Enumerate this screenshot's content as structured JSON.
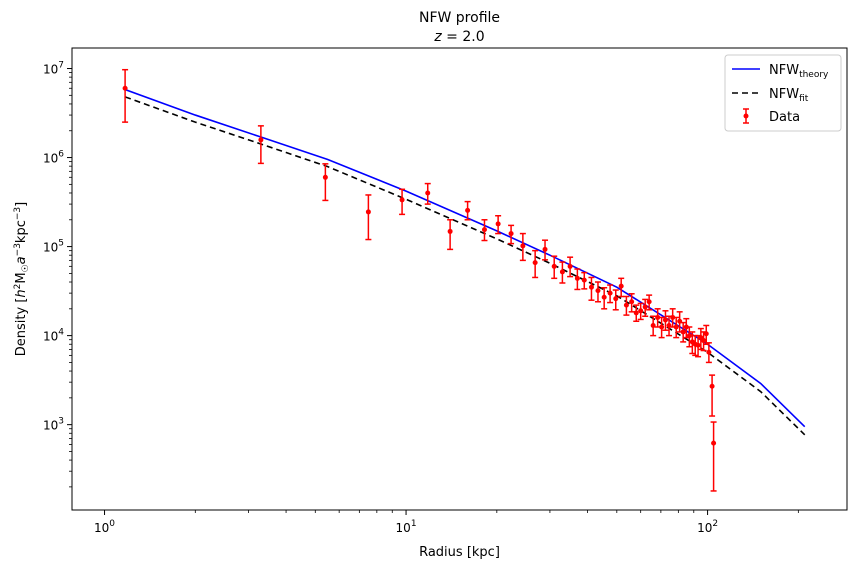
{
  "chart_data": {
    "type": "scatter",
    "title": "NFW profile",
    "subtitle": "z = 2.0",
    "xlabel": "Radius [kpc]",
    "ylabel": "Density [h² M☉ a⁻³ kpc⁻³]",
    "xscale": "log",
    "yscale": "log",
    "xlim": [
      0.78,
      290
    ],
    "ylim": [
      110,
      17000000
    ],
    "grid": false,
    "legend_position": "top-right",
    "x_ticks": [
      {
        "value": 1,
        "base": "10",
        "exp": "0"
      },
      {
        "value": 10,
        "base": "10",
        "exp": "1"
      },
      {
        "value": 100,
        "base": "10",
        "exp": "2"
      }
    ],
    "y_ticks": [
      {
        "value": 1000,
        "base": "10",
        "exp": "3"
      },
      {
        "value": 10000,
        "base": "10",
        "exp": "4"
      },
      {
        "value": 100000,
        "base": "10",
        "exp": "5"
      },
      {
        "value": 1000000,
        "base": "10",
        "exp": "6"
      },
      {
        "value": 10000000,
        "base": "10",
        "exp": "7"
      }
    ],
    "series": [
      {
        "name": "NFW_theory",
        "legend_main": "NFW",
        "legend_sub": "theory",
        "kind": "line",
        "color": "#0000ff",
        "dash": "",
        "x": [
          1.17,
          2,
          3.3,
          5.5,
          10,
          20,
          30,
          50,
          100,
          150,
          210
        ],
        "y": [
          5800000,
          3000000,
          1700000,
          950000,
          420000,
          150000,
          80000,
          35000,
          8000,
          2900,
          950
        ]
      },
      {
        "name": "NFW_fit",
        "legend_main": "NFW",
        "legend_sub": "fit",
        "kind": "line",
        "color": "#000000",
        "dash": "6,4",
        "x": [
          1.17,
          2,
          3.3,
          5.5,
          10,
          20,
          30,
          50,
          100,
          150,
          210
        ],
        "y": [
          4800000,
          2500000,
          1420000,
          790000,
          340000,
          122000,
          65000,
          28000,
          6500,
          2350,
          770
        ]
      },
      {
        "name": "Data",
        "kind": "errorbar",
        "color": "#ff0000",
        "x": [
          1.17,
          3.3,
          5.4,
          7.5,
          9.7,
          11.8,
          14,
          16,
          18.2,
          20.2,
          22.3,
          24.4,
          26.8,
          28.9,
          31,
          33,
          35,
          37,
          39,
          41.2,
          43.3,
          45.4,
          47.5,
          49.6,
          51.7,
          53.8,
          56,
          58,
          60,
          62.1,
          64,
          66,
          68.3,
          70.4,
          72.5,
          74.5,
          76.6,
          78.7,
          80.8,
          83,
          85,
          87,
          89,
          91,
          93,
          95,
          97,
          99,
          101,
          103.5,
          104.7
        ],
        "y": [
          6000000,
          1580000,
          600000,
          245000,
          335000,
          400000,
          148000,
          255000,
          155000,
          180000,
          140000,
          102000,
          66000,
          93000,
          60000,
          52000,
          60000,
          44000,
          42000,
          35000,
          32000,
          27000,
          30000,
          26000,
          36000,
          22000,
          24000,
          18000,
          19000,
          21000,
          24000,
          13000,
          16000,
          12500,
          15000,
          13000,
          16000,
          12500,
          14500,
          11000,
          12500,
          10000,
          8500,
          8000,
          7800,
          9500,
          8800,
          10500,
          6500,
          2700,
          620
        ],
        "yerr_low": [
          3500000,
          720000,
          270000,
          125000,
          105000,
          100000,
          55000,
          55000,
          38000,
          40000,
          32000,
          32000,
          21000,
          22000,
          16000,
          13000,
          14000,
          11000,
          8500,
          10000,
          8000,
          7000,
          6500,
          6500,
          8500,
          5000,
          5500,
          3500,
          3800,
          4500,
          4500,
          3000,
          3500,
          3000,
          3500,
          3000,
          3500,
          3000,
          3500,
          2500,
          3000,
          2500,
          2200,
          2000,
          2000,
          2500,
          2000,
          2500,
          1500,
          1450,
          440
        ],
        "yerr_high": [
          3700000,
          690000,
          250000,
          135000,
          105000,
          110000,
          52000,
          65000,
          45000,
          42000,
          33000,
          38000,
          24000,
          25000,
          18000,
          15000,
          16000,
          12000,
          9000,
          10000,
          8000,
          7500,
          7000,
          6500,
          8000,
          5500,
          5500,
          4000,
          4000,
          4500,
          4500,
          3500,
          4000,
          3500,
          4000,
          3500,
          4000,
          3500,
          4000,
          3000,
          3000,
          2500,
          2500,
          2000,
          2200,
          2500,
          2200,
          2500,
          1800,
          900,
          450
        ]
      }
    ]
  }
}
